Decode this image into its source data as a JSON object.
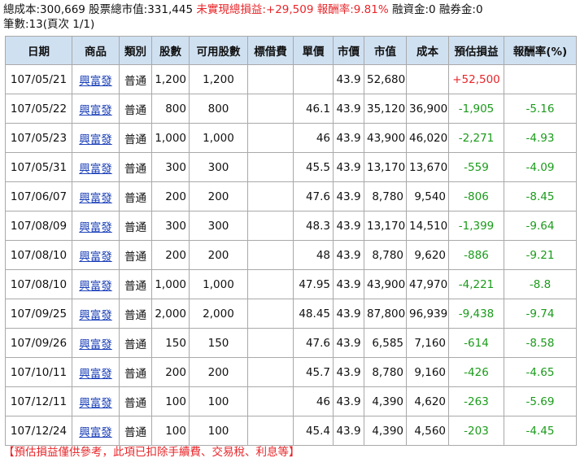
{
  "summary": {
    "cost": "總成本:300,669",
    "market_value": "股票總市值:331,445",
    "unrealized": "未實現總損益:+29,509",
    "return_rate": "報酬率:9.81%",
    "margin": "融資金:0",
    "short": "融券金:0"
  },
  "count_text": "筆數:13(頁次 1/1)",
  "headers": [
    "日期",
    "商品",
    "類別",
    "股數",
    "可用股數",
    "標借費",
    "單價",
    "市價",
    "市值",
    "成本",
    "預估損益",
    "報酬率(%)"
  ],
  "rows": [
    {
      "date": "107/05/21",
      "product": "興富發",
      "type": "普通",
      "shares": "1,200",
      "avail": "1,200",
      "fee": "",
      "price": "",
      "mkt": "43.9",
      "value": "52,680",
      "cost": "",
      "pnl": "+52,500",
      "ret": "",
      "pnl_color": "red"
    },
    {
      "date": "107/05/22",
      "product": "興富發",
      "type": "普通",
      "shares": "800",
      "avail": "800",
      "fee": "",
      "price": "46.1",
      "mkt": "43.9",
      "value": "35,120",
      "cost": "36,900",
      "pnl": "-1,905",
      "ret": "-5.16",
      "pnl_color": "green"
    },
    {
      "date": "107/05/23",
      "product": "興富發",
      "type": "普通",
      "shares": "1,000",
      "avail": "1,000",
      "fee": "",
      "price": "46",
      "mkt": "43.9",
      "value": "43,900",
      "cost": "46,020",
      "pnl": "-2,271",
      "ret": "-4.93",
      "pnl_color": "green"
    },
    {
      "date": "107/05/31",
      "product": "興富發",
      "type": "普通",
      "shares": "300",
      "avail": "300",
      "fee": "",
      "price": "45.5",
      "mkt": "43.9",
      "value": "13,170",
      "cost": "13,670",
      "pnl": "-559",
      "ret": "-4.09",
      "pnl_color": "green"
    },
    {
      "date": "107/06/07",
      "product": "興富發",
      "type": "普通",
      "shares": "200",
      "avail": "200",
      "fee": "",
      "price": "47.6",
      "mkt": "43.9",
      "value": "8,780",
      "cost": "9,540",
      "pnl": "-806",
      "ret": "-8.45",
      "pnl_color": "green"
    },
    {
      "date": "107/08/09",
      "product": "興富發",
      "type": "普通",
      "shares": "300",
      "avail": "300",
      "fee": "",
      "price": "48.3",
      "mkt": "43.9",
      "value": "13,170",
      "cost": "14,510",
      "pnl": "-1,399",
      "ret": "-9.64",
      "pnl_color": "green"
    },
    {
      "date": "107/08/10",
      "product": "興富發",
      "type": "普通",
      "shares": "200",
      "avail": "200",
      "fee": "",
      "price": "48",
      "mkt": "43.9",
      "value": "8,780",
      "cost": "9,620",
      "pnl": "-886",
      "ret": "-9.21",
      "pnl_color": "green"
    },
    {
      "date": "107/08/10",
      "product": "興富發",
      "type": "普通",
      "shares": "1,000",
      "avail": "1,000",
      "fee": "",
      "price": "47.95",
      "mkt": "43.9",
      "value": "43,900",
      "cost": "47,970",
      "pnl": "-4,221",
      "ret": "-8.8",
      "pnl_color": "green"
    },
    {
      "date": "107/09/25",
      "product": "興富發",
      "type": "普通",
      "shares": "2,000",
      "avail": "2,000",
      "fee": "",
      "price": "48.45",
      "mkt": "43.9",
      "value": "87,800",
      "cost": "96,939",
      "pnl": "-9,438",
      "ret": "-9.74",
      "pnl_color": "green"
    },
    {
      "date": "107/09/26",
      "product": "興富發",
      "type": "普通",
      "shares": "150",
      "avail": "150",
      "fee": "",
      "price": "47.6",
      "mkt": "43.9",
      "value": "6,585",
      "cost": "7,160",
      "pnl": "-614",
      "ret": "-8.58",
      "pnl_color": "green"
    },
    {
      "date": "107/10/11",
      "product": "興富發",
      "type": "普通",
      "shares": "200",
      "avail": "200",
      "fee": "",
      "price": "45.7",
      "mkt": "43.9",
      "value": "8,780",
      "cost": "9,160",
      "pnl": "-426",
      "ret": "-4.65",
      "pnl_color": "green"
    },
    {
      "date": "107/12/11",
      "product": "興富發",
      "type": "普通",
      "shares": "100",
      "avail": "100",
      "fee": "",
      "price": "46",
      "mkt": "43.9",
      "value": "4,390",
      "cost": "4,620",
      "pnl": "-263",
      "ret": "-5.69",
      "pnl_color": "green"
    },
    {
      "date": "107/12/24",
      "product": "興富發",
      "type": "普通",
      "shares": "100",
      "avail": "100",
      "fee": "",
      "price": "45.4",
      "mkt": "43.9",
      "value": "4,390",
      "cost": "4,560",
      "pnl": "-203",
      "ret": "-4.45",
      "pnl_color": "green"
    }
  ],
  "note": "【預估損益僅供參考，此項已扣除手續費、交易稅、利息等】",
  "colors": {
    "header_bg": "#cfe0f1",
    "red": "#e8262a",
    "green": "#1a9b1a",
    "link": "#1a3fb8"
  }
}
